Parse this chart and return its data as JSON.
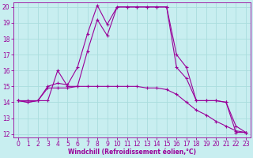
{
  "bg_color": "#c8eef0",
  "grid_color": "#aadddd",
  "line_color": "#990099",
  "xlabel": "Windchill (Refroidissement éolien,°C)",
  "xlim": [
    -0.5,
    23.5
  ],
  "ylim": [
    11.8,
    20.3
  ],
  "xticks": [
    0,
    1,
    2,
    3,
    4,
    5,
    6,
    7,
    8,
    9,
    10,
    11,
    12,
    13,
    14,
    15,
    16,
    17,
    18,
    19,
    20,
    21,
    22,
    23
  ],
  "yticks": [
    12,
    13,
    14,
    15,
    16,
    17,
    18,
    19,
    20
  ],
  "line1_x": [
    0,
    1,
    2,
    3,
    4,
    5,
    6,
    7,
    8,
    9,
    10,
    11,
    12,
    13,
    14,
    15,
    16,
    17,
    18,
    19,
    20,
    21,
    22,
    23
  ],
  "line1_y": [
    14.1,
    14.0,
    14.1,
    15.0,
    15.2,
    15.1,
    16.2,
    18.3,
    20.1,
    18.9,
    20.0,
    20.0,
    20.0,
    20.0,
    20.0,
    20.0,
    17.0,
    16.2,
    14.1,
    14.1,
    14.1,
    14.0,
    12.1,
    12.1
  ],
  "line2_x": [
    0,
    1,
    2,
    3,
    4,
    5,
    6,
    7,
    8,
    9,
    10,
    11,
    12,
    13,
    14,
    15,
    16,
    17,
    18,
    19,
    20,
    21,
    22,
    23
  ],
  "line2_y": [
    14.1,
    14.0,
    14.1,
    14.1,
    16.0,
    15.0,
    15.0,
    17.2,
    19.2,
    18.2,
    20.0,
    20.0,
    20.0,
    20.0,
    20.0,
    20.0,
    16.2,
    15.5,
    14.1,
    14.1,
    14.1,
    14.0,
    12.5,
    12.1
  ],
  "line3_x": [
    0,
    1,
    2,
    3,
    4,
    5,
    6,
    7,
    8,
    9,
    10,
    11,
    12,
    13,
    14,
    15,
    16,
    17,
    18,
    19,
    20,
    21,
    22,
    23
  ],
  "line3_y": [
    14.1,
    14.1,
    14.1,
    14.9,
    14.9,
    14.9,
    15.0,
    15.0,
    15.0,
    15.0,
    15.0,
    15.0,
    15.0,
    14.9,
    14.9,
    14.8,
    14.5,
    14.0,
    13.5,
    13.2,
    12.8,
    12.5,
    12.2,
    12.1
  ],
  "tick_fontsize": 5.5,
  "xlabel_fontsize": 5.5,
  "marker_size": 3.5,
  "linewidth": 0.8
}
